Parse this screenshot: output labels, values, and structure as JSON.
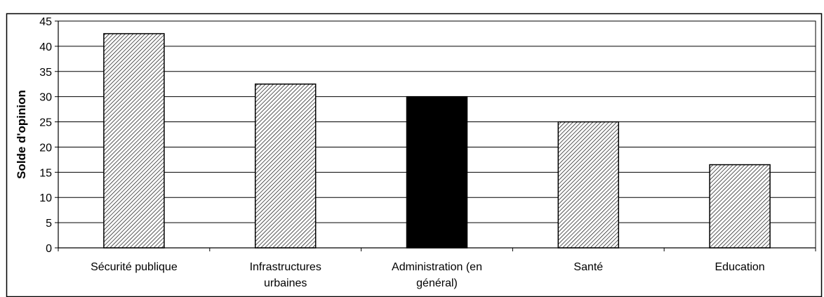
{
  "chart_data": {
    "type": "bar",
    "title": "",
    "ylabel": "Solde d'opinion",
    "xlabel": "",
    "ylim": [
      0,
      45
    ],
    "yticks": [
      0,
      5,
      10,
      15,
      20,
      25,
      30,
      35,
      40,
      45
    ],
    "grid": true,
    "categories": [
      [
        "Sécurité publique"
      ],
      [
        "Infrastructures",
        "urbaines"
      ],
      [
        "Administration (en",
        "général)"
      ],
      [
        "Santé"
      ],
      [
        "Education"
      ]
    ],
    "values": [
      42.5,
      32.5,
      30.0,
      25.0,
      16.5
    ],
    "bar_styles": [
      "hatched",
      "hatched",
      "solid",
      "hatched",
      "hatched"
    ],
    "colors": {
      "bar_fill": "#000000",
      "hatch_bg": "#ffffff",
      "axis": "#000000",
      "grid": "#000000"
    }
  }
}
